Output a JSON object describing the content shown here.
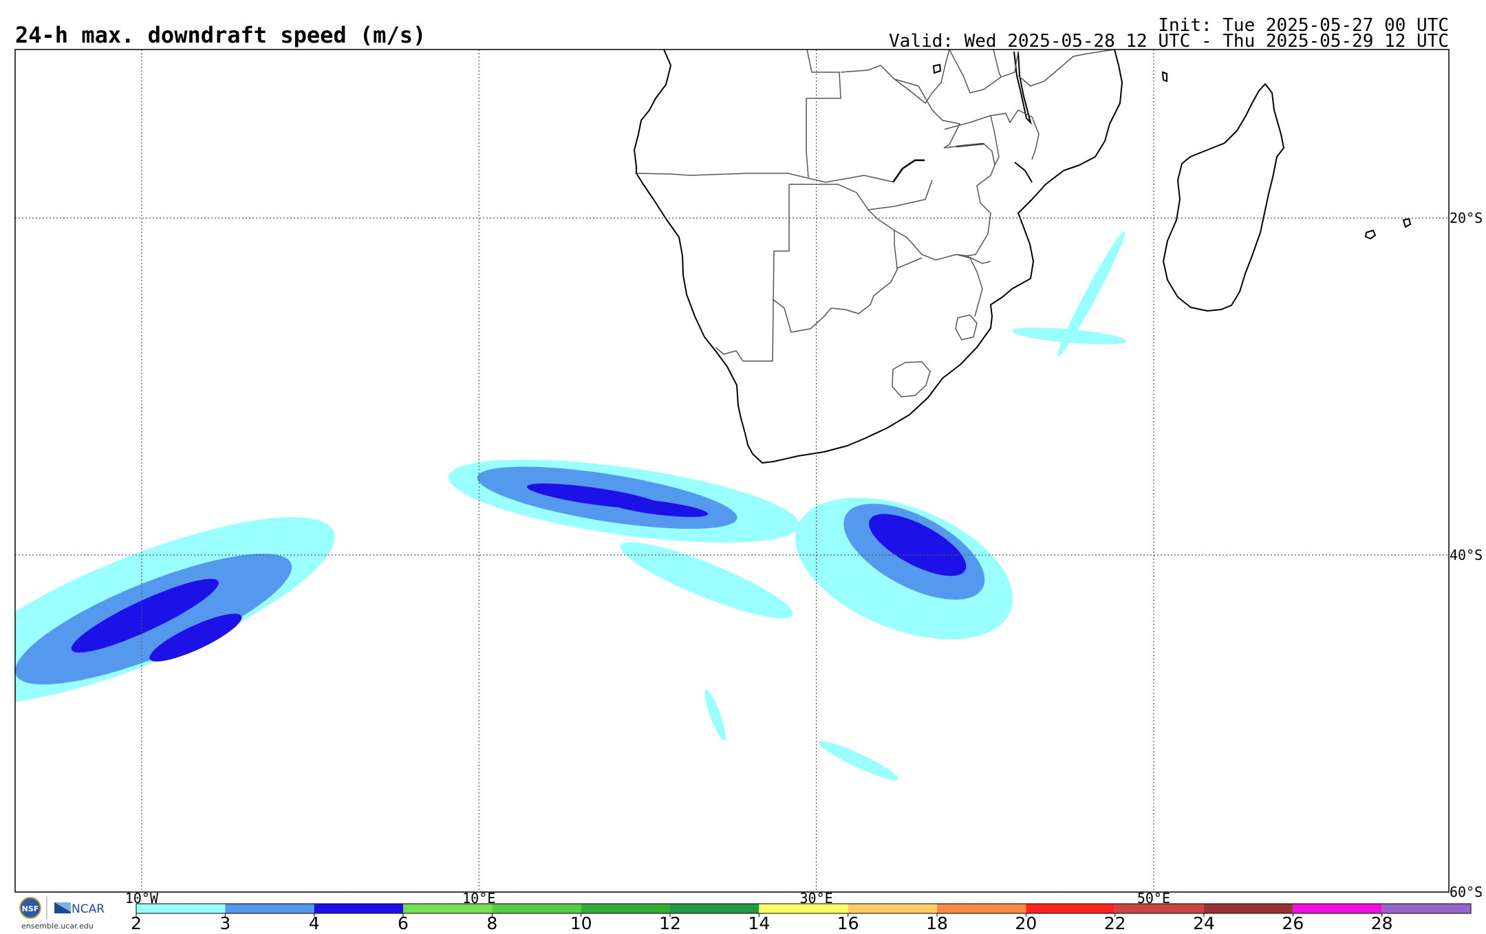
{
  "map": {
    "title": "24-h max. downdraft speed (m/s)",
    "init": "Init: Tue 2025-05-27 00 UTC",
    "valid": "Valid: Wed 2025-05-28 12 UTC - Thu 2025-05-29 12 UTC",
    "lon_range": [
      -17.5,
      67.5
    ],
    "lat_range": [
      -60,
      -10
    ],
    "lon_labels": [
      {
        "lon": -10,
        "text": "10°W"
      },
      {
        "lon": 10,
        "text": "10°E"
      },
      {
        "lon": 30,
        "text": "30°E"
      },
      {
        "lon": 50,
        "text": "50°E"
      }
    ],
    "lat_labels": [
      {
        "lat": -20,
        "text": "20°S"
      },
      {
        "lat": -40,
        "text": "40°S"
      },
      {
        "lat": -60,
        "text": "60°S"
      }
    ],
    "coastline_color": "#000000",
    "border_color": "#555555",
    "gridline_color": "#555555"
  },
  "colorbar": {
    "units": "m/s",
    "bins": [
      {
        "from": 2,
        "to": 3,
        "color": "#99ffff"
      },
      {
        "from": 3,
        "to": 4,
        "color": "#5599ee"
      },
      {
        "from": 4,
        "to": 6,
        "color": "#1c12e8"
      },
      {
        "from": 6,
        "to": 8,
        "color": "#77dd55"
      },
      {
        "from": 8,
        "to": 10,
        "color": "#55cc44"
      },
      {
        "from": 10,
        "to": 12,
        "color": "#33aa33"
      },
      {
        "from": 12,
        "to": 14,
        "color": "#229944"
      },
      {
        "from": 14,
        "to": 16,
        "color": "#ffff66"
      },
      {
        "from": 16,
        "to": 18,
        "color": "#ffcc66"
      },
      {
        "from": 18,
        "to": 20,
        "color": "#ff8844"
      },
      {
        "from": 20,
        "to": 22,
        "color": "#ff2222"
      },
      {
        "from": 22,
        "to": 24,
        "color": "#cc4444"
      },
      {
        "from": 24,
        "to": 26,
        "color": "#993333"
      },
      {
        "from": 26,
        "to": 28,
        "color": "#ee11dd"
      },
      {
        "from": 28,
        "to": 30,
        "color": "#9966cc"
      }
    ],
    "tick_labels": [
      "2",
      "3",
      "4",
      "6",
      "8",
      "10",
      "12",
      "14",
      "16",
      "18",
      "20",
      "22",
      "24",
      "26",
      "28"
    ]
  },
  "downdraft_features": [
    {
      "name": "south-atlantic-plume",
      "bands": [
        {
          "level": 2,
          "lon": -10.2,
          "lat": -43.3,
          "rlon": 12.5,
          "rlat": 3.2,
          "rot": -22
        },
        {
          "level": 3,
          "lon": -9.3,
          "lat": -43.8,
          "rlon": 8.8,
          "rlat": 2.2,
          "rot": -22
        },
        {
          "level": 4,
          "lon": -9.8,
          "lat": -43.6,
          "rlon": 4.8,
          "rlat": 0.9,
          "rot": -25
        },
        {
          "level": 4,
          "lon": -6.8,
          "lat": -44.9,
          "rlon": 3.0,
          "rlat": 0.7,
          "rot": -25
        }
      ]
    },
    {
      "name": "south-of-cape-plume",
      "bands": [
        {
          "level": 2,
          "lon": 18.6,
          "lat": -36.8,
          "rlon": 10.5,
          "rlat": 2.0,
          "rot": 8
        },
        {
          "level": 3,
          "lon": 17.6,
          "lat": -36.6,
          "rlon": 7.8,
          "rlat": 1.4,
          "rot": 9
        },
        {
          "level": 4,
          "lon": 16.8,
          "lat": -36.5,
          "rlon": 4.0,
          "rlat": 0.5,
          "rot": 8
        },
        {
          "level": 4,
          "lon": 20.6,
          "lat": -37.2,
          "rlon": 3.0,
          "rlat": 0.4,
          "rot": 7
        }
      ]
    },
    {
      "name": "southwest-indian-plume",
      "bands": [
        {
          "level": 2,
          "lon": 35.2,
          "lat": -40.8,
          "rlon": 6.8,
          "rlat": 3.6,
          "rot": 22
        },
        {
          "level": 3,
          "lon": 35.8,
          "lat": -39.8,
          "rlon": 4.6,
          "rlat": 2.1,
          "rot": 28
        },
        {
          "level": 4,
          "lon": 36.0,
          "lat": -39.4,
          "rlon": 3.2,
          "rlat": 1.2,
          "rot": 28
        }
      ]
    },
    {
      "name": "trailing-streaks",
      "bands": [
        {
          "level": 2,
          "lon": 23.5,
          "lat": -41.5,
          "rlon": 5.5,
          "rlat": 1.0,
          "rot": 22
        },
        {
          "level": 2,
          "lon": 32.5,
          "lat": -52.2,
          "rlon": 2.6,
          "rlat": 0.4,
          "rot": 25
        },
        {
          "level": 2,
          "lon": 24.0,
          "lat": -49.5,
          "rlon": 1.6,
          "rlat": 0.3,
          "rot": 70
        }
      ]
    },
    {
      "name": "mozambique-channel",
      "bands": [
        {
          "level": 2,
          "lon": 46.3,
          "lat": -24.5,
          "rlon": 4.2,
          "rlat": 0.35,
          "rot": -62
        },
        {
          "level": 2,
          "lon": 45.0,
          "lat": -27.0,
          "rlon": 3.4,
          "rlat": 0.4,
          "rot": 5
        }
      ]
    }
  ],
  "branding": {
    "nsf": "NSF",
    "ncar": "NCAR",
    "site": "ensemble.ucar.edu",
    "ncar_color": "#1f4a8a",
    "nsf_color": "#2a5aa8"
  }
}
